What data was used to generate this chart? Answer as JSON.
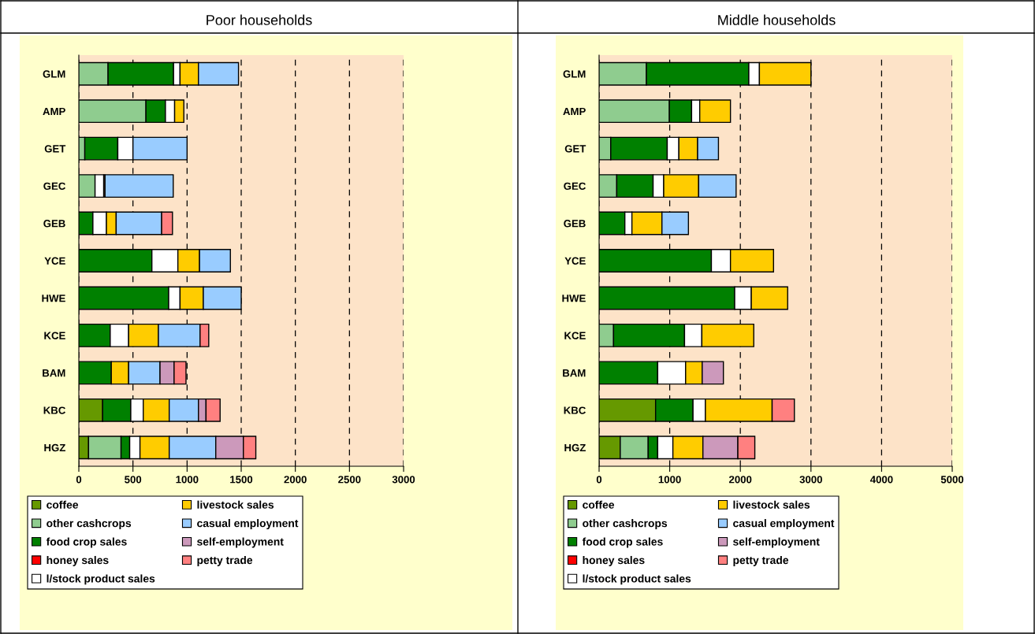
{
  "chart_data": [
    {
      "type": "bar",
      "title": "Poor households",
      "orientation": "horizontal",
      "stacked": true,
      "grid": "x",
      "legend": "bottom",
      "categories": [
        "GLM",
        "AMP",
        "GET",
        "GEC",
        "GEB",
        "YCE",
        "HWE",
        "KCE",
        "BAM",
        "KBC",
        "HGZ"
      ],
      "xlim": [
        0,
        3000
      ],
      "xticks": [
        0,
        500,
        1000,
        1500,
        2000,
        2500,
        3000
      ],
      "series": [
        {
          "name": "coffee",
          "color": "#669900",
          "values": [
            null,
            null,
            null,
            null,
            null,
            null,
            null,
            null,
            null,
            220,
            90
          ]
        },
        {
          "name": "other cashcrops",
          "color": "#8fcc8f",
          "values": [
            270,
            620,
            55,
            150,
            null,
            null,
            null,
            null,
            null,
            null,
            300
          ]
        },
        {
          "name": "food crop sales",
          "color": "#008000",
          "values": [
            605,
            180,
            305,
            null,
            130,
            675,
            830,
            290,
            300,
            260,
            80
          ]
        },
        {
          "name": "honey sales",
          "color": "#ff0000",
          "values": [
            null,
            null,
            null,
            null,
            null,
            null,
            null,
            null,
            null,
            null,
            null
          ]
        },
        {
          "name": "l/stock product sales",
          "color": "#ffffff",
          "values": [
            60,
            85,
            140,
            80,
            125,
            240,
            105,
            170,
            null,
            115,
            95
          ]
        },
        {
          "name": "livestock sales",
          "color": "#ffcc00",
          "values": [
            170,
            85,
            null,
            12,
            90,
            200,
            215,
            275,
            160,
            240,
            270
          ]
        },
        {
          "name": "casual employment",
          "color": "#99ccff",
          "values": [
            370,
            null,
            500,
            630,
            420,
            285,
            350,
            385,
            290,
            270,
            430
          ]
        },
        {
          "name": "self-employment",
          "color": "#cc99bb",
          "values": [
            null,
            null,
            null,
            null,
            null,
            null,
            null,
            null,
            130,
            70,
            255
          ]
        },
        {
          "name": "petty trade",
          "color": "#ff8080",
          "values": [
            null,
            null,
            null,
            null,
            100,
            null,
            null,
            80,
            110,
            130,
            115
          ]
        }
      ]
    },
    {
      "type": "bar",
      "title": "Middle households",
      "orientation": "horizontal",
      "stacked": true,
      "grid": "x",
      "legend": "bottom",
      "categories": [
        "GLM",
        "AMP",
        "GET",
        "GEC",
        "GEB",
        "YCE",
        "HWE",
        "KCE",
        "BAM",
        "KBC",
        "HGZ"
      ],
      "xlim": [
        0,
        5000
      ],
      "xticks": [
        0,
        1000,
        2000,
        3000,
        4000,
        5000
      ],
      "series": [
        {
          "name": "coffee",
          "color": "#669900",
          "values": [
            null,
            null,
            null,
            null,
            null,
            null,
            null,
            null,
            null,
            800,
            300
          ]
        },
        {
          "name": "other cashcrops",
          "color": "#8fcc8f",
          "values": [
            670,
            995,
            165,
            250,
            null,
            null,
            null,
            205,
            null,
            null,
            395
          ]
        },
        {
          "name": "food crop sales",
          "color": "#008000",
          "values": [
            1450,
            315,
            800,
            515,
            365,
            1590,
            1920,
            1005,
            830,
            530,
            135
          ]
        },
        {
          "name": "honey sales",
          "color": "#ff0000",
          "values": [
            null,
            null,
            null,
            null,
            null,
            null,
            null,
            null,
            null,
            null,
            null
          ]
        },
        {
          "name": "l/stock product sales",
          "color": "#ffffff",
          "values": [
            150,
            115,
            165,
            150,
            100,
            270,
            235,
            245,
            395,
            175,
            215
          ]
        },
        {
          "name": "livestock sales",
          "color": "#ffcc00",
          "values": [
            730,
            435,
            265,
            495,
            425,
            610,
            515,
            735,
            235,
            945,
            425
          ]
        },
        {
          "name": "casual employment",
          "color": "#99ccff",
          "values": [
            null,
            null,
            295,
            530,
            375,
            null,
            null,
            null,
            null,
            null,
            null
          ]
        },
        {
          "name": "self-employment",
          "color": "#cc99bb",
          "values": [
            null,
            null,
            null,
            null,
            null,
            null,
            null,
            null,
            300,
            null,
            495
          ]
        },
        {
          "name": "petty trade",
          "color": "#ff8080",
          "values": [
            null,
            null,
            null,
            null,
            null,
            null,
            null,
            null,
            null,
            315,
            240
          ]
        }
      ]
    }
  ]
}
